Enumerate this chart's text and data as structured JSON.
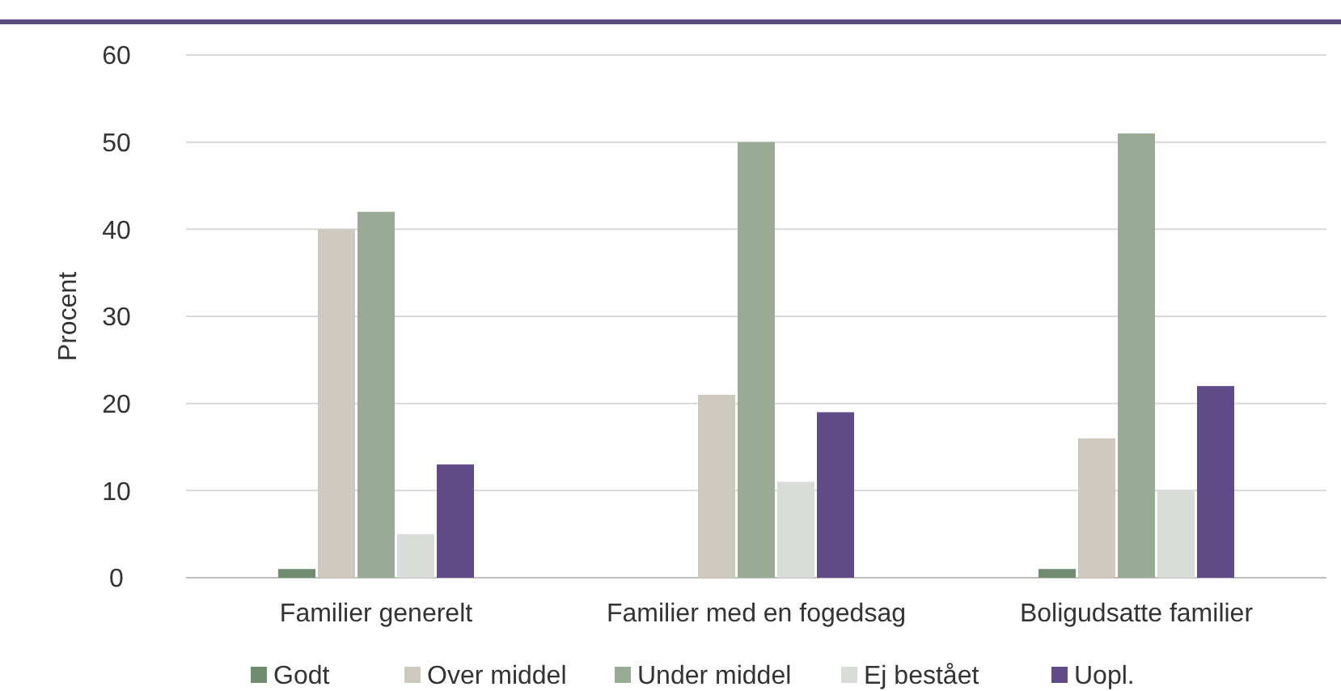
{
  "chart_data": {
    "type": "bar",
    "ylabel": "Procent",
    "categories": [
      "Familier generelt",
      "Familier med en fogedsag",
      "Boligudsatte familier"
    ],
    "series": [
      {
        "name": "Godt",
        "color": "#6f8c6f",
        "values": [
          1,
          0,
          1
        ]
      },
      {
        "name": "Over middel",
        "color": "#cdc9bf",
        "values": [
          40,
          21,
          16
        ]
      },
      {
        "name": "Under middel",
        "color": "#9aab95",
        "values": [
          42,
          50,
          51
        ]
      },
      {
        "name": "Ej bestået",
        "color": "#d9ddd7",
        "values": [
          5,
          11,
          10
        ]
      },
      {
        "name": "Uopl.",
        "color": "#604b88",
        "values": [
          13,
          19,
          22
        ]
      }
    ],
    "ylim": [
      0,
      60
    ],
    "yticks": [
      0,
      10,
      20,
      30,
      40,
      50,
      60
    ],
    "grid": "y",
    "legend": "bottom"
  }
}
